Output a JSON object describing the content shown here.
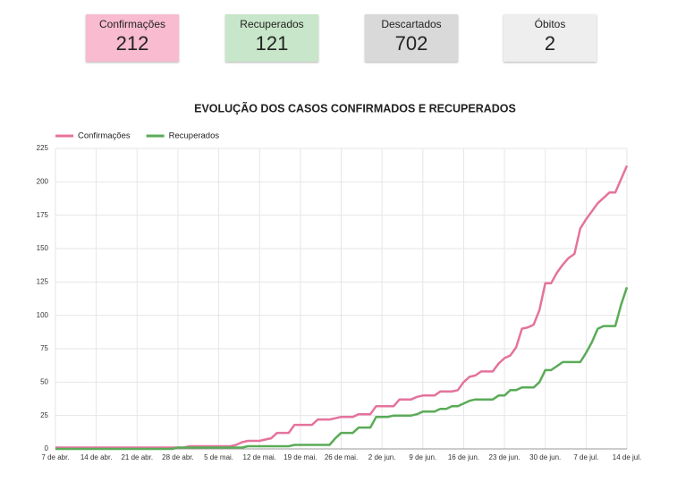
{
  "cards": [
    {
      "label": "Confirmações",
      "value": 212,
      "color": "#f8bbd0"
    },
    {
      "label": "Recuperados",
      "value": 121,
      "color": "#c8e6c9"
    },
    {
      "label": "Descartados",
      "value": 702,
      "color": "#d9d9d9"
    },
    {
      "label": "Óbitos",
      "value": 2,
      "color": "#eeeeee"
    }
  ],
  "chart_data": {
    "type": "line",
    "title": "EVOLUÇÃO DOS CASOS CONFIRMADOS E RECUPERADOS",
    "categories": [
      "7 de abr.",
      null,
      null,
      null,
      null,
      null,
      null,
      "14 de abr.",
      null,
      null,
      null,
      null,
      null,
      null,
      "21 de abr.",
      null,
      null,
      null,
      null,
      null,
      null,
      "28 de abr.",
      null,
      null,
      null,
      null,
      null,
      null,
      "5 de mai.",
      null,
      null,
      null,
      null,
      null,
      null,
      "12 de mai.",
      null,
      null,
      null,
      null,
      null,
      null,
      "19 de mai.",
      null,
      null,
      null,
      null,
      null,
      null,
      "26 de mai.",
      null,
      null,
      null,
      null,
      null,
      null,
      "2 de jun.",
      null,
      null,
      null,
      null,
      null,
      null,
      "9 de jun.",
      null,
      null,
      null,
      null,
      null,
      null,
      "16 de jun.",
      null,
      null,
      null,
      null,
      null,
      null,
      "23 de jun.",
      null,
      null,
      null,
      null,
      null,
      null,
      "30 de jun.",
      null,
      null,
      null,
      null,
      null,
      null,
      "7 de jul.",
      null,
      null,
      null,
      null,
      null,
      null,
      "14 de jul."
    ],
    "series": [
      {
        "name": "Confirmações",
        "color": "#e4739d",
        "values": [
          1,
          1,
          1,
          1,
          1,
          1,
          1,
          1,
          1,
          1,
          1,
          1,
          1,
          1,
          1,
          1,
          1,
          1,
          1,
          1,
          1,
          1,
          1,
          2,
          2,
          2,
          2,
          2,
          2,
          2,
          2,
          3,
          5,
          6,
          6,
          6,
          7,
          8,
          12,
          12,
          12,
          18,
          18,
          18,
          18,
          22,
          22,
          22,
          23,
          24,
          24,
          24,
          26,
          26,
          26,
          32,
          32,
          32,
          32,
          37,
          37,
          37,
          39,
          40,
          40,
          40,
          43,
          43,
          43,
          44,
          50,
          54,
          55,
          58,
          58,
          58,
          64,
          68,
          70,
          76,
          90,
          91,
          93,
          104,
          124,
          124,
          132,
          138,
          143,
          146,
          165,
          172,
          178,
          184,
          188,
          192,
          192,
          202,
          212
        ]
      },
      {
        "name": "Recuperados",
        "color": "#5aab57",
        "values": [
          0,
          0,
          0,
          0,
          0,
          0,
          0,
          0,
          0,
          0,
          0,
          0,
          0,
          0,
          0,
          0,
          0,
          0,
          0,
          0,
          0,
          1,
          1,
          1,
          1,
          1,
          1,
          1,
          1,
          1,
          1,
          1,
          1,
          2,
          2,
          2,
          2,
          2,
          2,
          2,
          2,
          3,
          3,
          3,
          3,
          3,
          3,
          3,
          8,
          12,
          12,
          12,
          16,
          16,
          16,
          24,
          24,
          24,
          25,
          25,
          25,
          25,
          26,
          28,
          28,
          28,
          30,
          30,
          32,
          32,
          34,
          36,
          37,
          37,
          37,
          37,
          40,
          40,
          44,
          44,
          46,
          46,
          46,
          50,
          59,
          59,
          62,
          65,
          65,
          65,
          65,
          72,
          80,
          90,
          92,
          92,
          92,
          108,
          121
        ]
      }
    ],
    "ylim": [
      0,
      225
    ],
    "yticks": [
      0,
      25,
      50,
      75,
      100,
      125,
      150,
      175,
      200,
      225
    ],
    "grid": true,
    "legend": "top-left"
  }
}
